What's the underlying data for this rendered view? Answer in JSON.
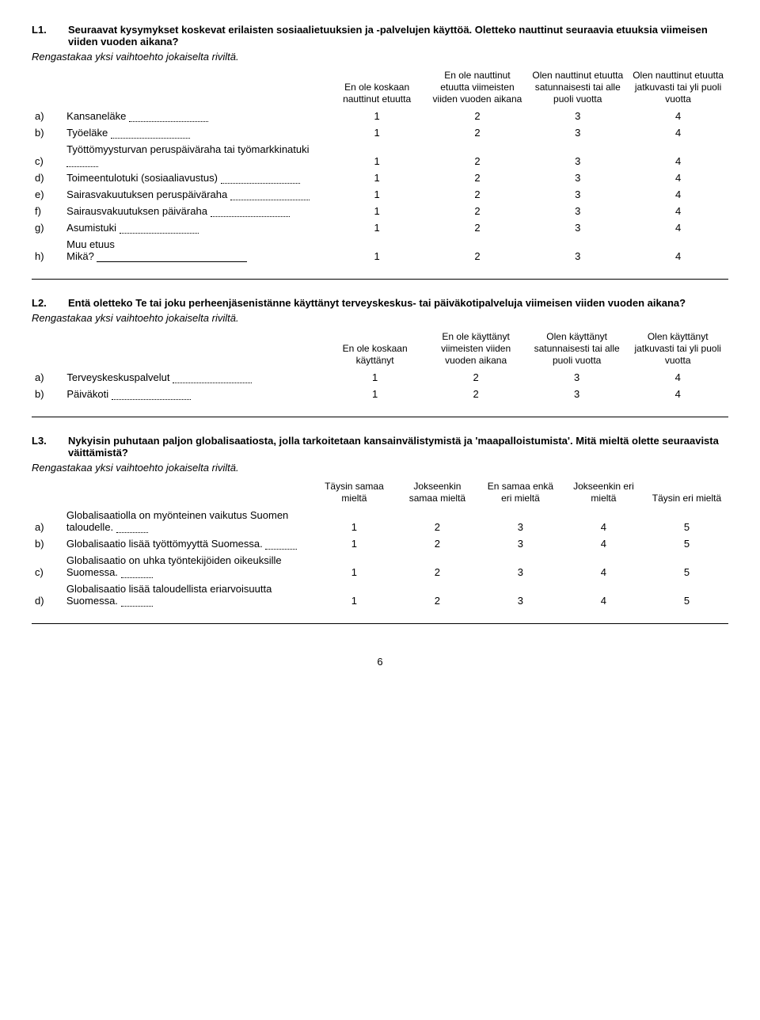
{
  "page_number": "6",
  "q1": {
    "num": "L1.",
    "title": "Seuraavat kysymykset koskevat erilaisten sosiaalietuuksien ja -palvelujen käyttöä. Oletteko nauttinut seuraavia etuuksia viimeisen viiden vuoden aikana?",
    "instr": "Rengastakaa yksi vaihtoehto jokaiselta riviltä.",
    "cols": [
      "En ole koskaan nauttinut etuutta",
      "En ole nauttinut etuutta viimeisten viiden vuoden aikana",
      "Olen nauttinut etuutta satunnaisesti tai alle puoli vuotta",
      "Olen nauttinut etuutta jatkuvasti tai yli puoli vuotta"
    ],
    "rows": [
      {
        "l": "a)",
        "t": "Kansaneläke",
        "o": [
          "1",
          "2",
          "3",
          "4"
        ]
      },
      {
        "l": "b)",
        "t": "Työeläke",
        "o": [
          "1",
          "2",
          "3",
          "4"
        ]
      },
      {
        "l": "c)",
        "t": "Työttömyysturvan peruspäiväraha tai työmarkkinatuki",
        "o": [
          "1",
          "2",
          "3",
          "4"
        ],
        "wrap": true
      },
      {
        "l": "d)",
        "t": "Toimeentulotuki (sosiaaliavustus)",
        "o": [
          "1",
          "2",
          "3",
          "4"
        ]
      },
      {
        "l": "e)",
        "t": "Sairasvakuutuksen peruspäiväraha",
        "o": [
          "1",
          "2",
          "3",
          "4"
        ]
      },
      {
        "l": "f)",
        "t": "Sairausvakuutuksen päiväraha",
        "o": [
          "1",
          "2",
          "3",
          "4"
        ]
      },
      {
        "l": "g)",
        "t": "Asumistuki",
        "o": [
          "1",
          "2",
          "3",
          "4"
        ]
      },
      {
        "l": "h)",
        "t": "Muu etuus",
        "t2": "Mikä?",
        "o": [
          "1",
          "2",
          "3",
          "4"
        ],
        "other": true
      }
    ]
  },
  "q2": {
    "num": "L2.",
    "title": "Entä oletteko Te tai joku perheenjäsenistänne käyttänyt terveyskeskus- tai päiväkotipalveluja viimeisen viiden vuoden aikana?",
    "instr": "Rengastakaa yksi vaihtoehto jokaiselta riviltä.",
    "cols": [
      "En ole koskaan käyttänyt",
      "En ole käyttänyt viimeisten viiden vuoden aikana",
      "Olen käyttänyt satunnaisesti tai alle puoli vuotta",
      "Olen käyttänyt jatkuvasti tai yli puoli vuotta"
    ],
    "rows": [
      {
        "l": "a)",
        "t": "Terveyskeskuspalvelut",
        "o": [
          "1",
          "2",
          "3",
          "4"
        ]
      },
      {
        "l": "b)",
        "t": "Päiväkoti",
        "o": [
          "1",
          "2",
          "3",
          "4"
        ]
      }
    ]
  },
  "q3": {
    "num": "L3.",
    "title": "Nykyisin puhutaan paljon globalisaatiosta, jolla tarkoitetaan kansainvälistymistä ja 'maapalloistumista'. Mitä mieltä olette seuraavista väittämistä?",
    "instr": "Rengastakaa yksi vaihtoehto jokaiselta riviltä.",
    "cols": [
      "Täysin samaa mieltä",
      "Jokseenkin samaa mieltä",
      "En samaa enkä eri mieltä",
      "Jokseenkin eri mieltä",
      "Täysin eri mieltä"
    ],
    "rows": [
      {
        "l": "a)",
        "t": "Globalisaatiolla on myönteinen vaikutus Suomen taloudelle.",
        "o": [
          "1",
          "2",
          "3",
          "4",
          "5"
        ],
        "wrap": true
      },
      {
        "l": "b)",
        "t": "Globalisaatio lisää työttömyyttä Suomessa.",
        "o": [
          "1",
          "2",
          "3",
          "4",
          "5"
        ],
        "wrap": true
      },
      {
        "l": "c)",
        "t": "Globalisaatio on uhka työntekijöiden oikeuksille Suomessa.",
        "o": [
          "1",
          "2",
          "3",
          "4",
          "5"
        ],
        "wrap": true
      },
      {
        "l": "d)",
        "t": "Globalisaatio lisää taloudellista eriarvoisuutta Suomessa.",
        "o": [
          "1",
          "2",
          "3",
          "4",
          "5"
        ],
        "wrap": true
      }
    ]
  }
}
